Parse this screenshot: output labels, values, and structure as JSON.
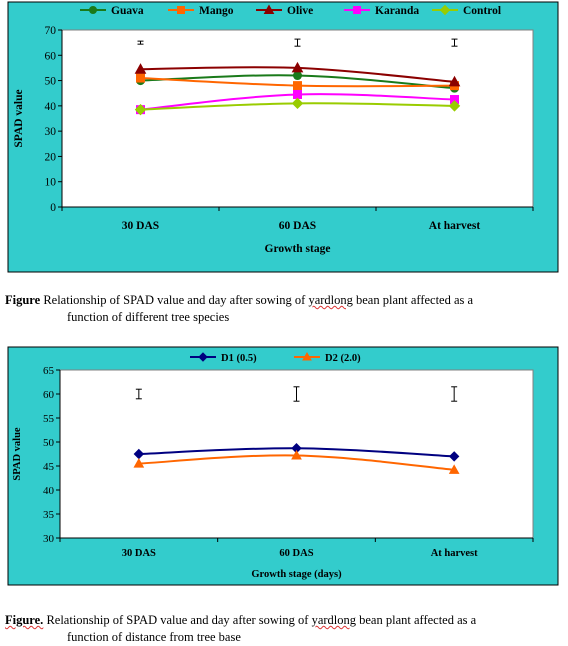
{
  "chart_data": [
    {
      "type": "line",
      "categories": [
        "30 DAS",
        "60 DAS",
        "At harvest"
      ],
      "series": [
        {
          "name": "Guava",
          "values": [
            50,
            52,
            47
          ],
          "color": "#1a7a1a",
          "marker": "circle"
        },
        {
          "name": "Mango",
          "values": [
            51,
            48,
            48
          ],
          "color": "#ff6600",
          "marker": "square"
        },
        {
          "name": "Olive",
          "values": [
            54.5,
            55,
            49.5
          ],
          "color": "#8b0000",
          "marker": "triangle"
        },
        {
          "name": "Karanda",
          "values": [
            38.5,
            44.5,
            42.5
          ],
          "color": "#ff00ff",
          "marker": "square"
        },
        {
          "name": "Control",
          "values": [
            38.5,
            41,
            40
          ],
          "color": "#99cc00",
          "marker": "diamond"
        }
      ],
      "error_bars": [
        {
          "center": 65,
          "half": 0.6
        },
        {
          "center": 65,
          "half": 1.4
        },
        {
          "center": 65,
          "half": 1.4
        }
      ],
      "xlabel": "Growth stage",
      "ylabel": "SPAD value",
      "ylim": [
        0,
        70
      ],
      "yticks": [
        0,
        10,
        20,
        30,
        40,
        50,
        60,
        70
      ],
      "grid": false,
      "legend": "top",
      "background": "#33cccc",
      "plot_background": "#ffffff"
    },
    {
      "type": "line",
      "categories": [
        "30 DAS",
        "60 DAS",
        "At harvest"
      ],
      "series": [
        {
          "name": "D1 (0.5)",
          "values": [
            47.5,
            48.7,
            47
          ],
          "color": "#000080",
          "marker": "diamond"
        },
        {
          "name": "D2 (2.0)",
          "values": [
            45.5,
            47.2,
            44.2
          ],
          "color": "#ff6600",
          "marker": "triangle"
        }
      ],
      "error_bars": [
        {
          "center": 60,
          "half": 1
        },
        {
          "center": 60,
          "half": 1.5
        },
        {
          "center": 60,
          "half": 1.5
        }
      ],
      "xlabel": "Growth stage (days)",
      "ylabel": "SPAD value",
      "ylim": [
        30,
        65
      ],
      "yticks": [
        30,
        35,
        40,
        45,
        50,
        55,
        60,
        65
      ],
      "grid": false,
      "legend": "top",
      "background": "#33cccc",
      "plot_background": "#ffffff"
    }
  ],
  "captions": {
    "fig1_label": "Figure",
    "fig1_line1": " Relationship of SPAD value and day after sowing of ",
    "fig1_word": "yardlong",
    "fig1_line1_end": " bean plant affected as a",
    "fig1_line2": "function of different tree species",
    "fig2_label": "Figure.",
    "fig2_line1": " Relationship of SPAD value and day after sowing of ",
    "fig2_word": "yardlong",
    "fig2_line1_end": " bean plant affected as a",
    "fig2_line2": "function of distance  from tree base"
  }
}
